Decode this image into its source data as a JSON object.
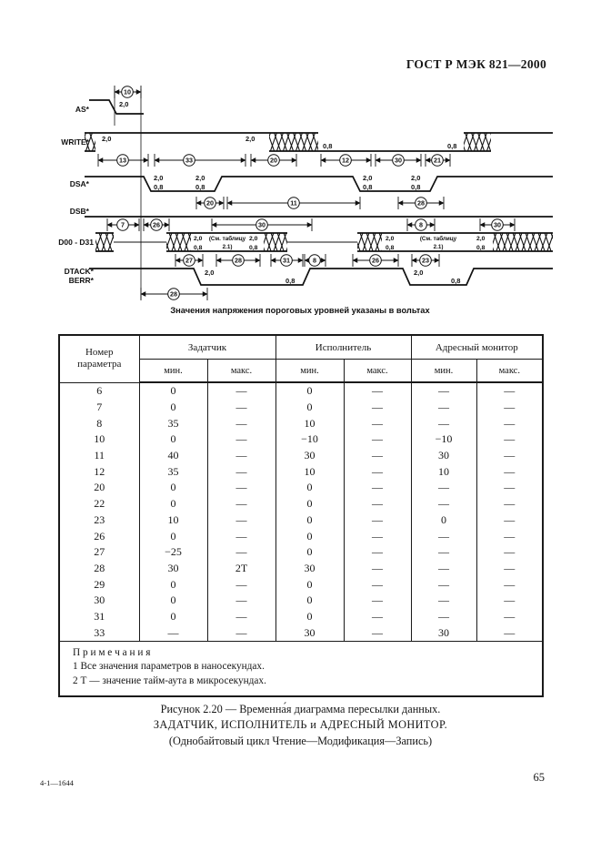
{
  "page": {
    "header": "ГОСТ Р МЭК 821—2000",
    "footer_left": "4-1—1644",
    "page_number": "65"
  },
  "diagram": {
    "signal_labels": [
      "AS*",
      "WRITE*",
      "DSA*",
      "DSB*",
      "D00 - D31",
      "DTACK*",
      "BERR*"
    ],
    "threshold_high": "2,0",
    "threshold_low": "0,8",
    "bus_note_line1": "(См. таблицу",
    "bus_note_line2": "2.1)",
    "note": "Значения напряжения пороговых уровней указаны в вольтах",
    "callout_values": [
      "10",
      "13",
      "33",
      "20",
      "12",
      "30",
      "21",
      "20",
      "11",
      "28",
      "7",
      "26",
      "30",
      "8",
      "30",
      "27",
      "28",
      "31",
      "8",
      "26",
      "23",
      "28"
    ]
  },
  "table": {
    "param_label_1": "Номер",
    "param_label_2": "параметра",
    "groups": [
      "Задатчик",
      "Исполнитель",
      "Адресный монитор"
    ],
    "min_label": "мин.",
    "max_label": "макс.",
    "rows": [
      {
        "p": "6",
        "values": [
          "0",
          "—",
          "0",
          "—",
          "—",
          "—"
        ]
      },
      {
        "p": "7",
        "values": [
          "0",
          "—",
          "0",
          "—",
          "—",
          "—"
        ]
      },
      {
        "p": "8",
        "values": [
          "35",
          "—",
          "10",
          "—",
          "—",
          "—"
        ]
      },
      {
        "p": "10",
        "values": [
          "0",
          "—",
          "−10",
          "—",
          "−10",
          "—"
        ]
      },
      {
        "p": "11",
        "values": [
          "40",
          "—",
          "30",
          "—",
          "30",
          "—"
        ]
      },
      {
        "p": "12",
        "values": [
          "35",
          "—",
          "10",
          "—",
          "10",
          "—"
        ]
      },
      {
        "p": "20",
        "values": [
          "0",
          "—",
          "0",
          "—",
          "—",
          "—"
        ]
      },
      {
        "p": "22",
        "values": [
          "0",
          "—",
          "0",
          "—",
          "—",
          "—"
        ]
      },
      {
        "p": "23",
        "values": [
          "10",
          "—",
          "0",
          "—",
          "0",
          "—"
        ]
      },
      {
        "p": "26",
        "values": [
          "0",
          "—",
          "0",
          "—",
          "—",
          "—"
        ]
      },
      {
        "p": "27",
        "values": [
          "−25",
          "—",
          "0",
          "—",
          "—",
          "—"
        ]
      },
      {
        "p": "28",
        "values": [
          "30",
          "2T",
          "30",
          "—",
          "—",
          "—"
        ]
      },
      {
        "p": "29",
        "values": [
          "0",
          "—",
          "0",
          "—",
          "—",
          "—"
        ]
      },
      {
        "p": "30",
        "values": [
          "0",
          "—",
          "0",
          "—",
          "—",
          "—"
        ]
      },
      {
        "p": "31",
        "values": [
          "0",
          "—",
          "0",
          "—",
          "—",
          "—"
        ]
      },
      {
        "p": "33",
        "values": [
          "—",
          "—",
          "30",
          "—",
          "30",
          "—"
        ]
      }
    ],
    "notes_title": "П р и м е ч а н и я",
    "notes": [
      "1 Все значения параметров в наносекундах.",
      "2 Т — значение тайм-аута в микросекундах."
    ]
  },
  "caption": {
    "line1": "Рисунок 2.20 — Временна́я диаграмма пересылки данных.",
    "line2": "ЗАДАТЧИК, ИСПОЛНИТЕЛЬ и АДРЕСНЫЙ МОНИТОР.",
    "line3": "(Однобайтовый цикл Чтение—Модификация—Запись)"
  }
}
